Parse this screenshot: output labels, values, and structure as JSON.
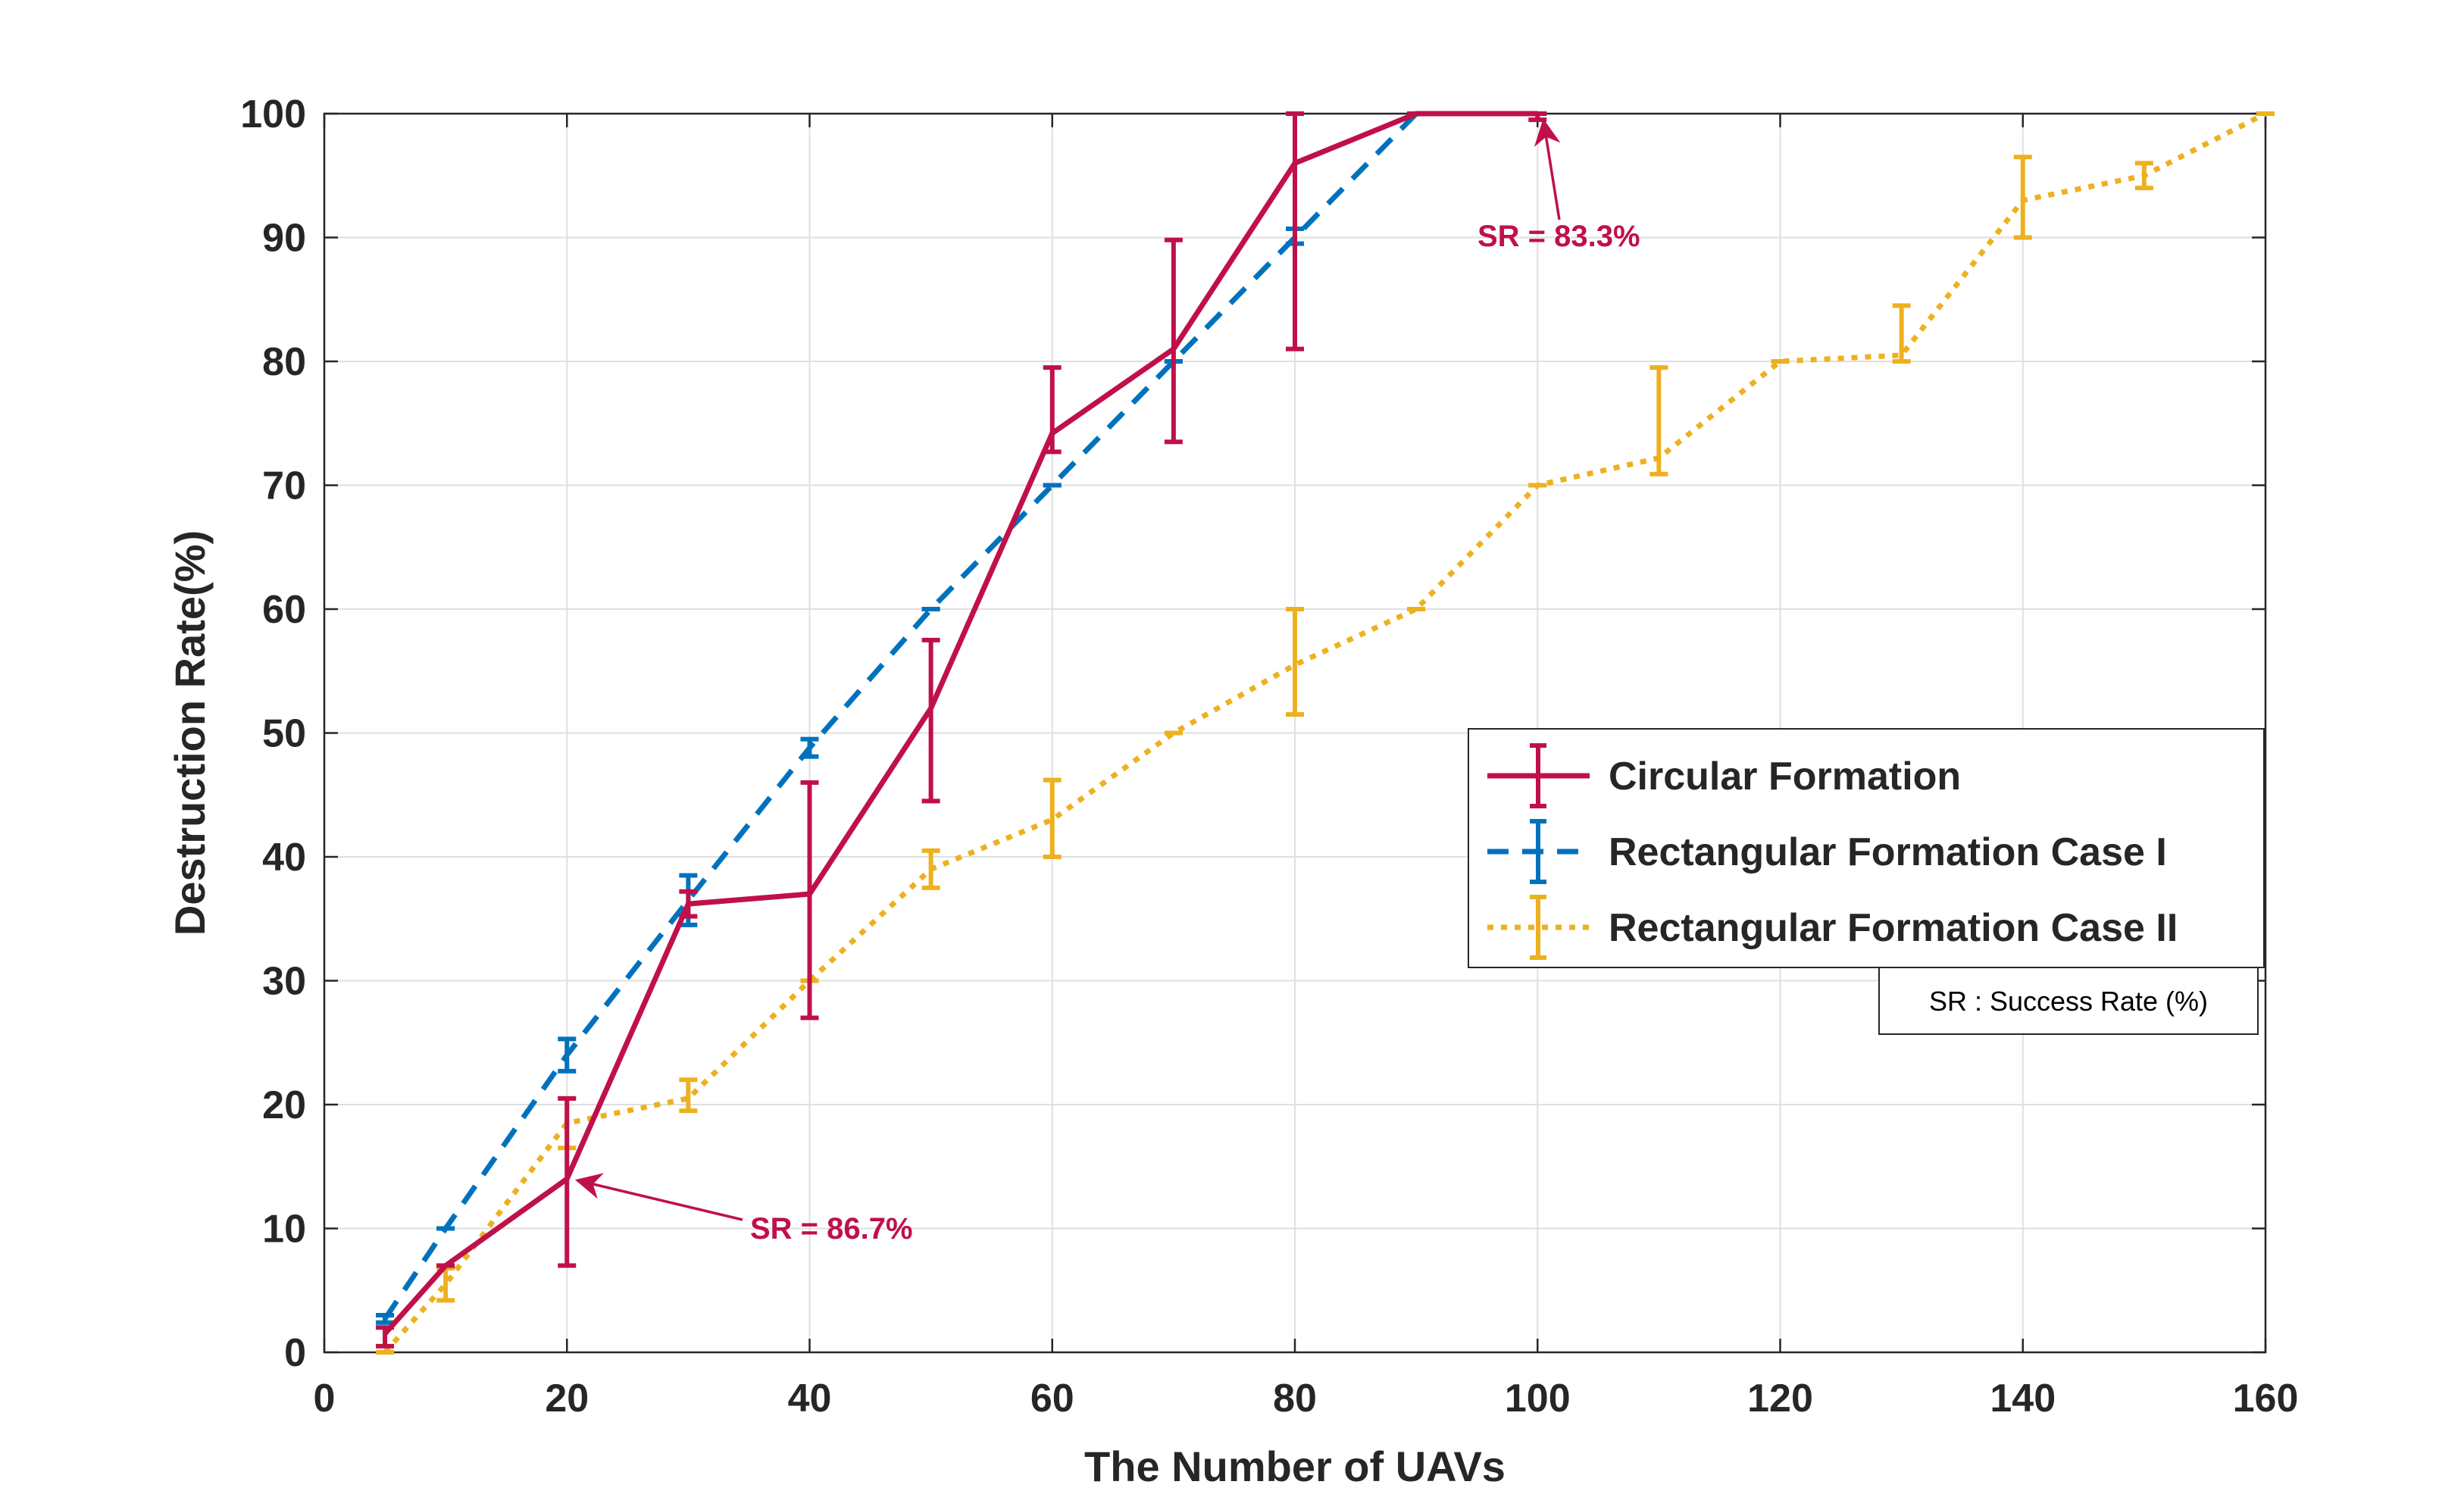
{
  "chart_data": {
    "type": "line",
    "xlabel": "The Number of UAVs",
    "ylabel": "Destruction Rate(%)",
    "xlim": [
      0,
      160
    ],
    "ylim": [
      0,
      100
    ],
    "xticks": [
      0,
      20,
      40,
      60,
      80,
      100,
      120,
      140,
      160
    ],
    "yticks": [
      0,
      10,
      20,
      30,
      40,
      50,
      60,
      70,
      80,
      90,
      100
    ],
    "grid": true,
    "legend_position": "right-middle",
    "series": [
      {
        "name": "Circular Formation",
        "color": "#c0104a",
        "style": "solid",
        "x": [
          5,
          10,
          20,
          30,
          40,
          50,
          60,
          70,
          80,
          90,
          100
        ],
        "y": [
          1.5,
          7,
          14,
          36.2,
          37,
          52,
          74.2,
          81,
          96,
          100,
          100
        ],
        "err_low": [
          1,
          0,
          7,
          1,
          10,
          7.5,
          1.5,
          7.5,
          15,
          0,
          0.5
        ],
        "err_high": [
          0.5,
          0,
          6.5,
          1,
          9,
          5.5,
          5.3,
          8.8,
          4,
          0,
          0
        ]
      },
      {
        "name": "Rectangular Formation Case I",
        "color": "#0072bd",
        "style": "dashed",
        "x": [
          5,
          10,
          20,
          30,
          40,
          50,
          60,
          70,
          80,
          90,
          100
        ],
        "y": [
          2.7,
          10,
          24,
          36.5,
          48.8,
          60,
          70,
          80,
          90,
          100,
          100
        ],
        "err_low": [
          0.3,
          0,
          1.3,
          2,
          0.7,
          0,
          0,
          0,
          0.5,
          0,
          0
        ],
        "err_high": [
          0.3,
          0,
          1.3,
          2,
          0.7,
          0,
          0,
          0,
          0.7,
          0,
          0
        ]
      },
      {
        "name": "Rectangular Formation Case II",
        "color": "#edb120",
        "style": "dotted",
        "x": [
          5,
          10,
          20,
          30,
          40,
          50,
          60,
          70,
          80,
          90,
          100,
          110,
          120,
          130,
          140,
          150,
          160
        ],
        "y": [
          0,
          5.5,
          18.5,
          20.5,
          30,
          39,
          43,
          50,
          55.5,
          60,
          70,
          72.2,
          80,
          80.5,
          93,
          95,
          100
        ],
        "err_low": [
          0,
          1.3,
          2,
          1,
          0,
          1.5,
          3,
          0,
          4,
          0,
          0,
          1.3,
          0,
          0.5,
          3,
          1,
          0
        ],
        "err_high": [
          0,
          1.3,
          2,
          1.5,
          0,
          1.5,
          3.2,
          0,
          4.5,
          0,
          0,
          7.3,
          0,
          4,
          3.5,
          1,
          0
        ]
      }
    ],
    "annotations": [
      {
        "text": "SR = 86.7%",
        "x": 20,
        "y": 14,
        "color": "#c0104a"
      },
      {
        "text": "SR = 83.3%",
        "x": 100,
        "y": 100,
        "color": "#c0104a"
      }
    ],
    "note": "SR : Success Rate (%)"
  }
}
